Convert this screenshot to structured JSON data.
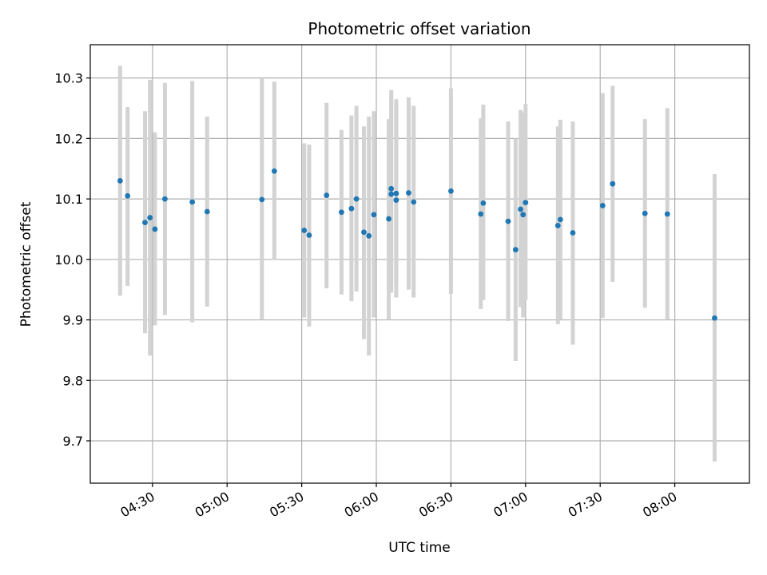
{
  "chart_data": {
    "type": "scatter",
    "title": "Photometric offset variation",
    "xlabel": "UTC time",
    "ylabel": "Photometric offset",
    "xlim": [
      "04:05",
      "08:30"
    ],
    "ylim": [
      9.63,
      10.355
    ],
    "x_ticks": [
      "04:30",
      "05:00",
      "05:30",
      "06:00",
      "06:30",
      "07:00",
      "07:30",
      "08:00"
    ],
    "y_ticks": [
      9.7,
      9.8,
      9.9,
      10.0,
      10.1,
      10.2,
      10.3
    ],
    "y_tick_labels": [
      "9.7",
      "9.8",
      "9.9",
      "10.0",
      "10.1",
      "10.2",
      "10.3"
    ],
    "grid": true,
    "colors": {
      "marker": "#1f77b4",
      "errorbar": "#d3d3d3"
    },
    "series": [
      {
        "points": [
          {
            "x": "04:17",
            "y": 10.13,
            "ylo": 9.94,
            "yhi": 10.32
          },
          {
            "x": "04:20",
            "y": 10.105,
            "ylo": 9.956,
            "yhi": 10.252
          },
          {
            "x": "04:27",
            "y": 10.061,
            "ylo": 9.878,
            "yhi": 10.245
          },
          {
            "x": "04:29",
            "y": 10.069,
            "ylo": 9.841,
            "yhi": 10.297
          },
          {
            "x": "04:31",
            "y": 10.05,
            "ylo": 9.891,
            "yhi": 10.21
          },
          {
            "x": "04:35",
            "y": 10.1,
            "ylo": 9.908,
            "yhi": 10.292
          },
          {
            "x": "04:46",
            "y": 10.095,
            "ylo": 9.896,
            "yhi": 10.295
          },
          {
            "x": "04:52",
            "y": 10.079,
            "ylo": 9.922,
            "yhi": 10.236
          },
          {
            "x": "05:14",
            "y": 10.099,
            "ylo": 9.9,
            "yhi": 10.3
          },
          {
            "x": "05:19",
            "y": 10.146,
            "ylo": 10.0,
            "yhi": 10.294
          },
          {
            "x": "05:31",
            "y": 10.048,
            "ylo": 9.904,
            "yhi": 10.192
          },
          {
            "x": "05:33",
            "y": 10.04,
            "ylo": 9.889,
            "yhi": 10.19
          },
          {
            "x": "05:40",
            "y": 10.106,
            "ylo": 9.952,
            "yhi": 10.259
          },
          {
            "x": "05:46",
            "y": 10.078,
            "ylo": 9.942,
            "yhi": 10.214
          },
          {
            "x": "05:50",
            "y": 10.084,
            "ylo": 9.931,
            "yhi": 10.238
          },
          {
            "x": "05:52",
            "y": 10.1,
            "ylo": 9.947,
            "yhi": 10.254
          },
          {
            "x": "05:55",
            "y": 10.045,
            "ylo": 9.868,
            "yhi": 10.22
          },
          {
            "x": "05:57",
            "y": 10.039,
            "ylo": 9.841,
            "yhi": 10.236
          },
          {
            "x": "05:59",
            "y": 10.074,
            "ylo": 9.904,
            "yhi": 10.245
          },
          {
            "x": "06:05",
            "y": 10.067,
            "ylo": 9.9,
            "yhi": 10.232
          },
          {
            "x": "06:06",
            "y": 10.108,
            "ylo": 9.945,
            "yhi": 10.27
          },
          {
            "x": "06:06",
            "y": 10.117,
            "ylo": 9.956,
            "yhi": 10.28
          },
          {
            "x": "06:08",
            "y": 10.109,
            "ylo": 9.955,
            "yhi": 10.265
          },
          {
            "x": "06:08",
            "y": 10.098,
            "ylo": 9.937,
            "yhi": 10.258
          },
          {
            "x": "06:13",
            "y": 10.11,
            "ylo": 9.95,
            "yhi": 10.268
          },
          {
            "x": "06:15",
            "y": 10.095,
            "ylo": 9.937,
            "yhi": 10.254
          },
          {
            "x": "06:30",
            "y": 10.113,
            "ylo": 9.943,
            "yhi": 10.283
          },
          {
            "x": "06:42",
            "y": 10.075,
            "ylo": 9.918,
            "yhi": 10.233
          },
          {
            "x": "06:43",
            "y": 10.093,
            "ylo": 9.933,
            "yhi": 10.256
          },
          {
            "x": "06:53",
            "y": 10.063,
            "ylo": 9.898,
            "yhi": 10.228
          },
          {
            "x": "06:56",
            "y": 10.016,
            "ylo": 9.832,
            "yhi": 10.2
          },
          {
            "x": "06:58",
            "y": 10.083,
            "ylo": 9.921,
            "yhi": 10.247
          },
          {
            "x": "06:59",
            "y": 10.074,
            "ylo": 9.904,
            "yhi": 10.243
          },
          {
            "x": "07:00",
            "y": 10.094,
            "ylo": 9.933,
            "yhi": 10.257
          },
          {
            "x": "07:13",
            "y": 10.056,
            "ylo": 9.893,
            "yhi": 10.22
          },
          {
            "x": "07:14",
            "y": 10.066,
            "ylo": 9.9,
            "yhi": 10.231
          },
          {
            "x": "07:19",
            "y": 10.044,
            "ylo": 9.859,
            "yhi": 10.228
          },
          {
            "x": "07:31",
            "y": 10.089,
            "ylo": 9.903,
            "yhi": 10.275
          },
          {
            "x": "07:35",
            "y": 10.125,
            "ylo": 9.963,
            "yhi": 10.287
          },
          {
            "x": "07:48",
            "y": 10.076,
            "ylo": 9.92,
            "yhi": 10.232
          },
          {
            "x": "07:57",
            "y": 10.075,
            "ylo": 9.9,
            "yhi": 10.25
          },
          {
            "x": "08:16",
            "y": 9.903,
            "ylo": 9.666,
            "yhi": 10.141
          }
        ]
      }
    ]
  }
}
